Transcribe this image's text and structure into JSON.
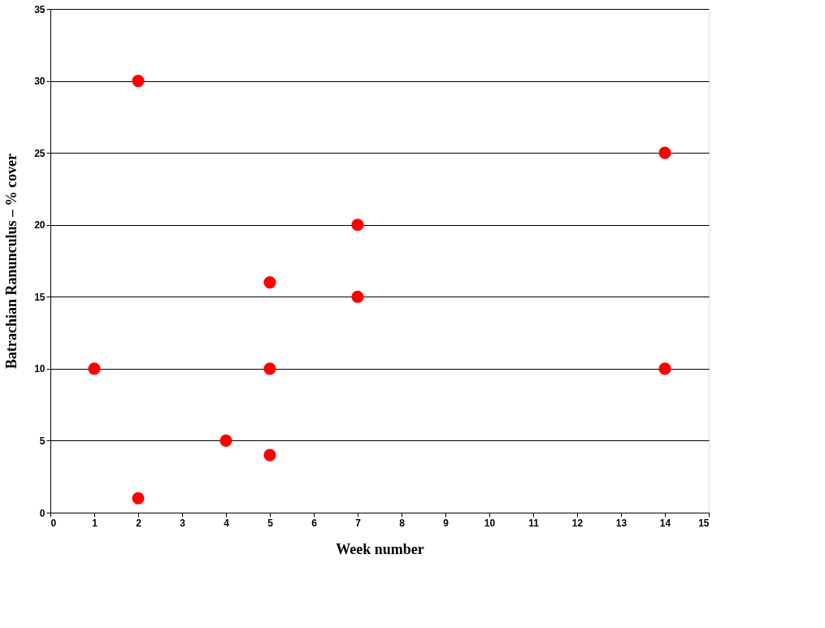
{
  "chart_data": {
    "type": "scatter",
    "xlabel": "Week number",
    "ylabel": "Batrachian Ranunculus – % cover",
    "x": [
      1,
      2,
      2,
      4,
      5,
      5,
      5,
      7,
      7,
      14,
      14
    ],
    "series": [
      {
        "color": "#ff0000",
        "values": [
          10,
          30,
          1,
          5,
          16,
          10,
          4,
          20,
          15,
          25,
          10
        ]
      }
    ],
    "xlim": [
      0,
      15
    ],
    "xticks": [
      0,
      1,
      2,
      3,
      4,
      5,
      6,
      7,
      8,
      9,
      10,
      11,
      12,
      13,
      14,
      15
    ],
    "ylim": [
      0,
      35
    ],
    "yticks": [
      0,
      5,
      10,
      15,
      20,
      25,
      30,
      35
    ],
    "grid": "y",
    "legend": false,
    "marker": "circle"
  }
}
